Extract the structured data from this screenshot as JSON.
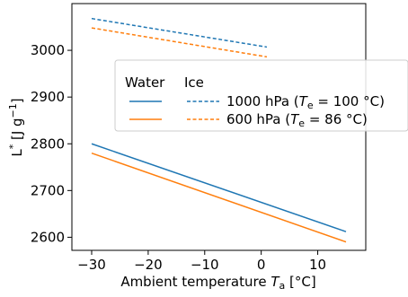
{
  "chart_data": {
    "type": "line",
    "title": "",
    "xlabel": {
      "prefix": "Ambient temperature ",
      "symbol": "T",
      "subscript": "a",
      "unit": " [°C]"
    },
    "ylabel": {
      "symbol": "L",
      "sup": "*",
      "unit_open": " [J g",
      "unit_sup": "−1",
      "unit_close": "]"
    },
    "xlim": [
      -33.5,
      18.5
    ],
    "ylim": [
      2572,
      3100
    ],
    "xticks": [
      -30,
      -20,
      -10,
      0,
      10
    ],
    "xtick_labels": [
      "−30",
      "−20",
      "−10",
      "0",
      "10"
    ],
    "yticks": [
      2600,
      2700,
      2800,
      2900,
      3000
    ],
    "ytick_labels": [
      "2600",
      "2700",
      "2800",
      "2900",
      "3000"
    ],
    "grid": false,
    "legend": {
      "placement": "center-right",
      "col_headers": [
        "Water",
        "Ice"
      ],
      "rows": [
        {
          "label_prefix": "1000 hPa (",
          "sym": "T",
          "sub": "e",
          "label_suffix": " = 100 °C)",
          "color": "#1f77b4"
        },
        {
          "label_prefix": "600 hPa (",
          "sym": "T",
          "sub": "e",
          "label_suffix": " = 86 °C)",
          "color": "#ff7f0e"
        }
      ]
    },
    "series": [
      {
        "pressure": "1000 hPa",
        "phase": "water",
        "color": "#1f77b4",
        "dash": "solid",
        "x": [
          -30,
          15
        ],
        "y": [
          2800,
          2612
        ]
      },
      {
        "pressure": "600 hPa",
        "phase": "water",
        "color": "#ff7f0e",
        "dash": "solid",
        "x": [
          -30,
          15
        ],
        "y": [
          2780,
          2590
        ]
      },
      {
        "pressure": "1000 hPa",
        "phase": "ice",
        "color": "#1f77b4",
        "dash": "dashed",
        "x": [
          -30,
          1
        ],
        "y": [
          3068,
          3007
        ]
      },
      {
        "pressure": "600 hPa",
        "phase": "ice",
        "color": "#ff7f0e",
        "dash": "dashed",
        "x": [
          -30,
          1
        ],
        "y": [
          3048,
          2986
        ]
      }
    ]
  }
}
